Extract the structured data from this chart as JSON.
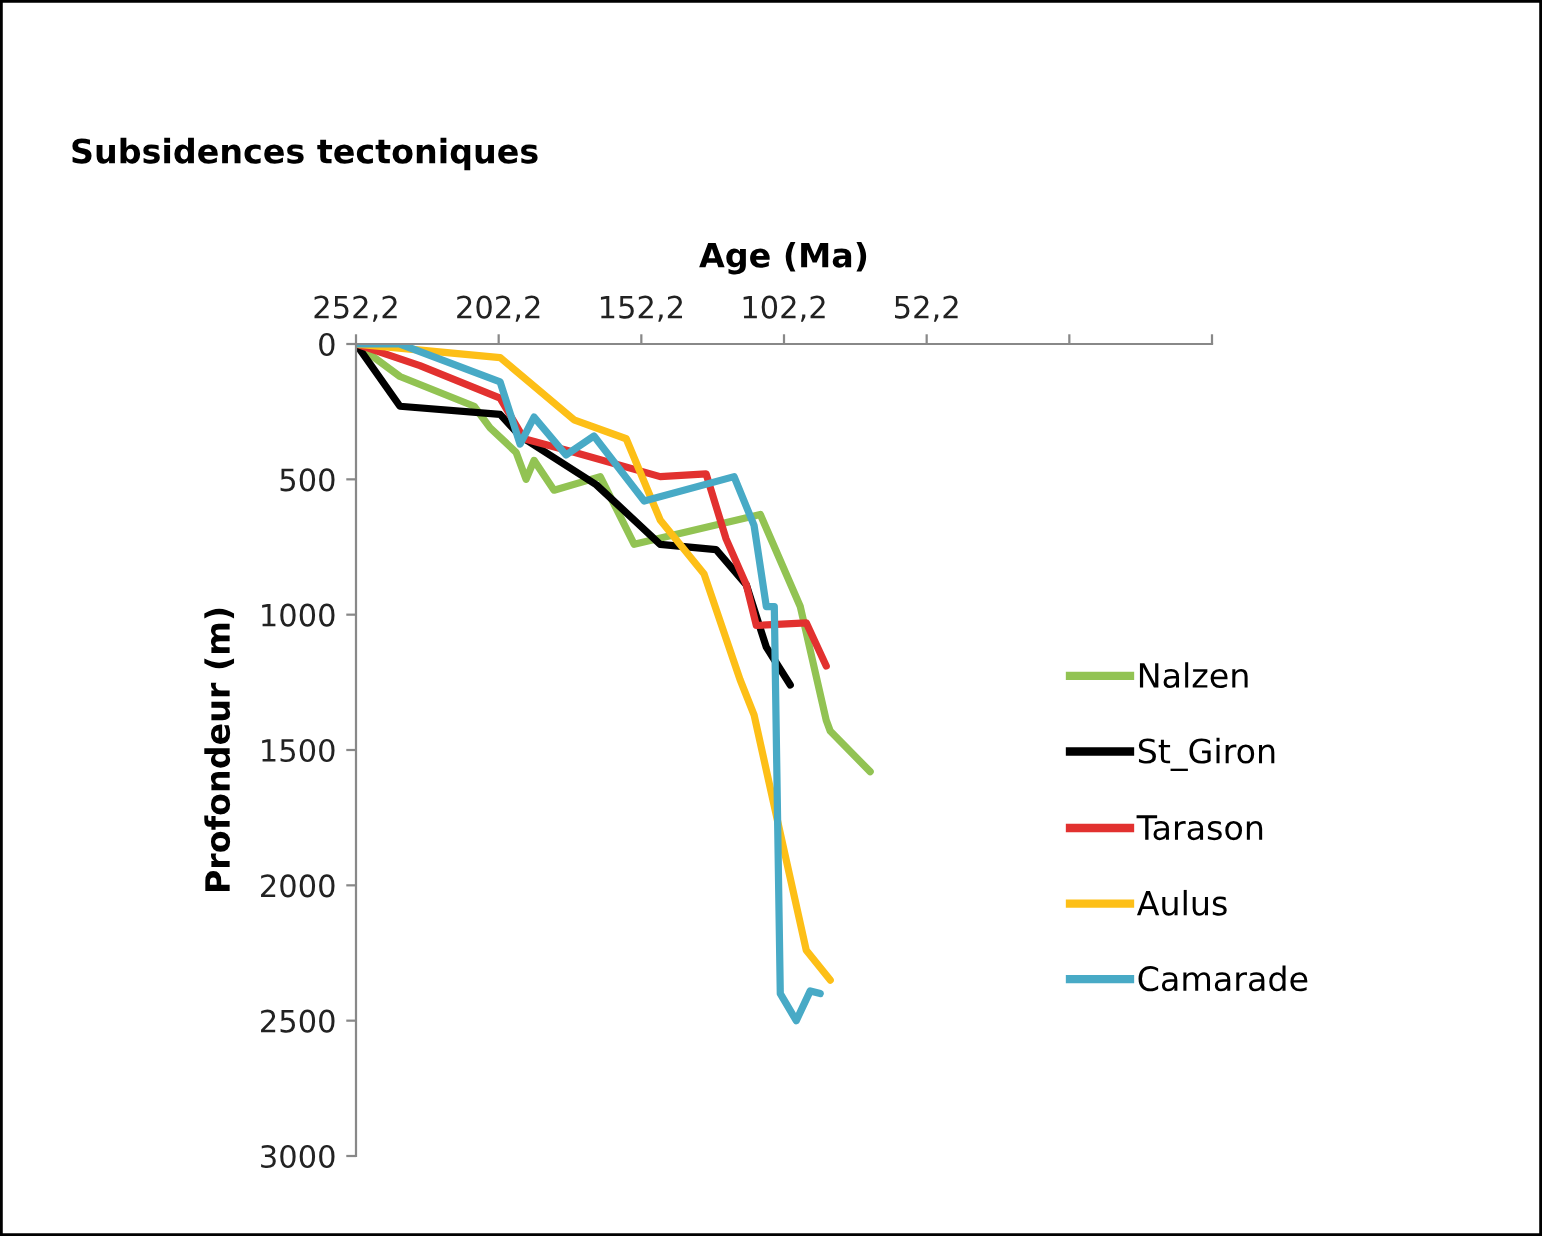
{
  "chart_data": {
    "type": "line",
    "title": "Subsidences tectoniques",
    "xlabel": "Age (Ma)",
    "ylabel": "Profondeur (m)",
    "xlim": [
      252.2,
      -47.8
    ],
    "xticks": [
      {
        "value": 252.2,
        "label": "252,2"
      },
      {
        "value": 202.2,
        "label": "202,2"
      },
      {
        "value": 152.2,
        "label": "152,2"
      },
      {
        "value": 102.2,
        "label": "102,2"
      },
      {
        "value": 52.2,
        "label": "52,2"
      },
      {
        "value": 2.2,
        "label": null
      },
      {
        "value": -47.8,
        "label": null
      }
    ],
    "ylim": [
      3000,
      0
    ],
    "yticks": [
      0,
      500,
      1000,
      1500,
      2000,
      2500,
      3000
    ],
    "grid": false,
    "legend": "right",
    "marker": "none",
    "line_style": "solid",
    "series": [
      {
        "name": "Nalzen",
        "color": "#92c353",
        "x": [
          252.2,
          236.8,
          210.8,
          205.2,
          196.1,
          192.6,
          189.8,
          182.8,
          166.6,
          154.7,
          110.5,
          96.5,
          87.4,
          86.0,
          72.0
        ],
        "values": [
          0,
          120,
          230,
          310,
          400,
          500,
          430,
          540,
          490,
          740,
          630,
          970,
          1390,
          1430,
          1580
        ]
      },
      {
        "name": "St_Giron",
        "color": "#000000",
        "x": [
          252.2,
          236.8,
          201.7,
          194.7,
          168.0,
          145.6,
          126.0,
          115.4,
          108.4,
          100.0
        ],
        "values": [
          0,
          230,
          260,
          340,
          520,
          740,
          760,
          890,
          1120,
          1260
        ]
      },
      {
        "name": "Tarason",
        "color": "#e2312f",
        "x": [
          252.2,
          229.8,
          201.7,
          193.3,
          175.8,
          145.6,
          129.5,
          122.5,
          115.4,
          111.9,
          94.4,
          87.4
        ],
        "values": [
          0,
          80,
          200,
          350,
          400,
          490,
          480,
          720,
          890,
          1040,
          1030,
          1190
        ]
      },
      {
        "name": "Aulus",
        "color": "#fdbf17",
        "x": [
          252.2,
          201.7,
          175.8,
          157.5,
          145.6,
          130.2,
          117.6,
          112.7,
          94.4,
          86.0
        ],
        "values": [
          0,
          50,
          280,
          350,
          650,
          850,
          1240,
          1370,
          2240,
          2350
        ]
      },
      {
        "name": "Camarade",
        "color": "#48aac6",
        "x": [
          252.2,
          236.8,
          201.7,
          194.7,
          189.8,
          178.6,
          168.8,
          151.2,
          119.7,
          112.7,
          108.4,
          105.6,
          103.5,
          97.9,
          93.0,
          89.5
        ],
        "values": [
          0,
          0,
          140,
          370,
          270,
          410,
          340,
          580,
          490,
          670,
          970,
          970,
          2400,
          2500,
          2390,
          2400
        ]
      }
    ]
  }
}
